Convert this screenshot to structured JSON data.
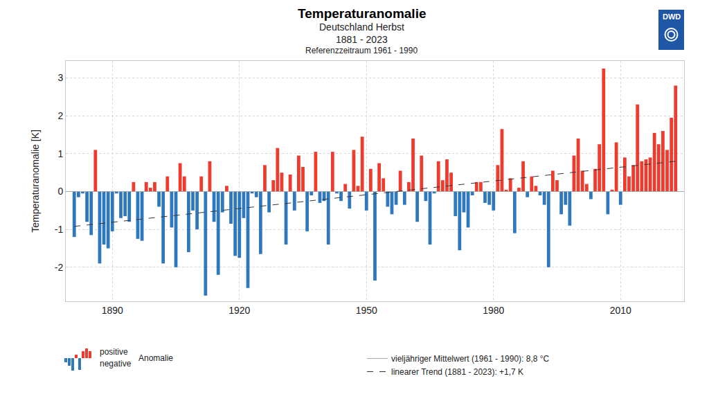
{
  "chart_data": {
    "type": "bar",
    "title": "Temperaturanomalie",
    "subtitle": [
      "Deutschland Herbst",
      "1881 - 2023",
      "Referenzzeitraum 1961 - 1990"
    ],
    "logo": "DWD",
    "y_label": "Temperaturanomalie [K]",
    "legend_title": "Anomalie",
    "legend": "bottom",
    "grid": true,
    "x": [
      1881,
      1882,
      1883,
      1884,
      1885,
      1886,
      1887,
      1888,
      1889,
      1890,
      1891,
      1892,
      1893,
      1894,
      1895,
      1896,
      1897,
      1898,
      1899,
      1900,
      1901,
      1902,
      1903,
      1904,
      1905,
      1906,
      1907,
      1908,
      1909,
      1910,
      1911,
      1912,
      1913,
      1914,
      1915,
      1916,
      1917,
      1918,
      1919,
      1920,
      1921,
      1922,
      1923,
      1924,
      1925,
      1926,
      1927,
      1928,
      1929,
      1930,
      1931,
      1932,
      1933,
      1934,
      1935,
      1936,
      1937,
      1938,
      1939,
      1940,
      1941,
      1942,
      1943,
      1944,
      1945,
      1946,
      1947,
      1948,
      1949,
      1950,
      1951,
      1952,
      1953,
      1954,
      1955,
      1956,
      1957,
      1958,
      1959,
      1960,
      1961,
      1962,
      1963,
      1964,
      1965,
      1966,
      1967,
      1968,
      1969,
      1970,
      1971,
      1972,
      1973,
      1974,
      1975,
      1976,
      1977,
      1978,
      1979,
      1980,
      1981,
      1982,
      1983,
      1984,
      1985,
      1986,
      1987,
      1988,
      1989,
      1990,
      1991,
      1992,
      1993,
      1994,
      1995,
      1996,
      1997,
      1998,
      1999,
      2000,
      2001,
      2002,
      2003,
      2004,
      2005,
      2006,
      2007,
      2008,
      2009,
      2010,
      2011,
      2012,
      2013,
      2014,
      2015,
      2016,
      2017,
      2018,
      2019,
      2020,
      2021,
      2022,
      2023
    ],
    "series": [
      {
        "name": "positive",
        "type": "bar",
        "color": "#ee3b2e",
        "values": [
          null,
          null,
          null,
          null,
          null,
          1.1,
          null,
          null,
          null,
          null,
          null,
          null,
          null,
          null,
          0.25,
          null,
          null,
          0.25,
          0.1,
          0.25,
          null,
          null,
          0.4,
          null,
          null,
          0.75,
          0.4,
          null,
          null,
          null,
          0.4,
          null,
          0.8,
          null,
          null,
          null,
          0.15,
          null,
          null,
          null,
          null,
          null,
          null,
          null,
          null,
          0.7,
          null,
          0.3,
          1.15,
          0.5,
          null,
          0.45,
          null,
          0.95,
          0.65,
          null,
          null,
          1.05,
          null,
          null,
          null,
          1.05,
          null,
          null,
          0.2,
          null,
          1.1,
          0.15,
          1.45,
          null,
          0.6,
          null,
          0.75,
          0.35,
          null,
          null,
          null,
          0.55,
          null,
          0.25,
          1.4,
          null,
          0.95,
          null,
          null,
          null,
          0.8,
          0.3,
          0.85,
          0.5,
          null,
          null,
          null,
          null,
          null,
          0.25,
          0.25,
          null,
          null,
          null,
          0.7,
          1.65,
          0.05,
          0.35,
          null,
          0.1,
          0.8,
          null,
          0.4,
          0.15,
          null,
          null,
          null,
          0.55,
          0.3,
          null,
          null,
          null,
          0.95,
          1.4,
          0.55,
          0.2,
          null,
          0.6,
          1.25,
          3.25,
          null,
          0.05,
          1.3,
          null,
          0.9,
          0.4,
          0.7,
          2.3,
          0.8,
          0.85,
          0.9,
          1.55,
          1.25,
          1.6,
          1.1,
          1.95,
          2.8
        ]
      },
      {
        "name": "negative",
        "type": "bar",
        "color": "#2f78bd",
        "values": [
          -1.2,
          -0.15,
          -0.05,
          -0.8,
          -1.15,
          null,
          -1.9,
          -1.4,
          -1.5,
          -1.05,
          -0.05,
          -0.7,
          -0.65,
          -0.8,
          null,
          -1.25,
          -1.3,
          null,
          null,
          null,
          -0.4,
          -1.9,
          null,
          -0.95,
          -2.0,
          null,
          null,
          -1.6,
          -0.5,
          -1.0,
          null,
          -2.75,
          null,
          -0.8,
          -2.2,
          -0.55,
          null,
          -0.85,
          -1.7,
          -1.75,
          -0.7,
          -2.55,
          -0.05,
          -0.15,
          -1.65,
          null,
          -0.55,
          null,
          null,
          null,
          -1.4,
          null,
          -0.5,
          null,
          null,
          -1.05,
          -0.1,
          null,
          -0.3,
          -0.25,
          -1.4,
          null,
          -0.05,
          -0.25,
          null,
          -0.45,
          null,
          null,
          null,
          -0.5,
          null,
          -2.35,
          null,
          null,
          -0.4,
          -0.6,
          -0.35,
          null,
          -0.35,
          null,
          null,
          -0.8,
          null,
          -0.25,
          -1.4,
          -0.05,
          null,
          null,
          null,
          null,
          -0.65,
          -1.55,
          -0.55,
          -0.95,
          -0.1,
          null,
          null,
          -0.3,
          -0.35,
          -0.5,
          null,
          null,
          null,
          null,
          -1.1,
          null,
          null,
          -0.15,
          null,
          null,
          -0.1,
          -0.35,
          -2.0,
          null,
          null,
          -0.6,
          -0.35,
          -0.9,
          null,
          null,
          null,
          null,
          -0.2,
          null,
          null,
          null,
          -0.6,
          null,
          null,
          -0.35,
          null,
          null,
          null,
          null,
          null,
          null,
          null,
          null,
          null,
          null,
          null,
          null,
          null
        ]
      },
      {
        "name": "vieljähriger Mittelwert (1961 - 1990): 8,8 °C",
        "type": "line",
        "line_style": "solid",
        "color": "#a8a8a8",
        "x": [
          1879,
          2025
        ],
        "values": [
          0,
          0
        ]
      },
      {
        "name": "linearer Trend (1881 - 2023): +1,7 K",
        "type": "line",
        "line_style": "dash",
        "color": "#333333",
        "x": [
          1881,
          2023
        ],
        "values": [
          -0.92,
          0.8
        ]
      }
    ],
    "xlim": [
      1879,
      2025
    ],
    "xticks": [
      1890,
      1920,
      1950,
      1980,
      2010
    ],
    "ylim": [
      -2.9,
      3.45
    ],
    "yticks": [
      -2,
      -1,
      0,
      1,
      2,
      3
    ]
  }
}
